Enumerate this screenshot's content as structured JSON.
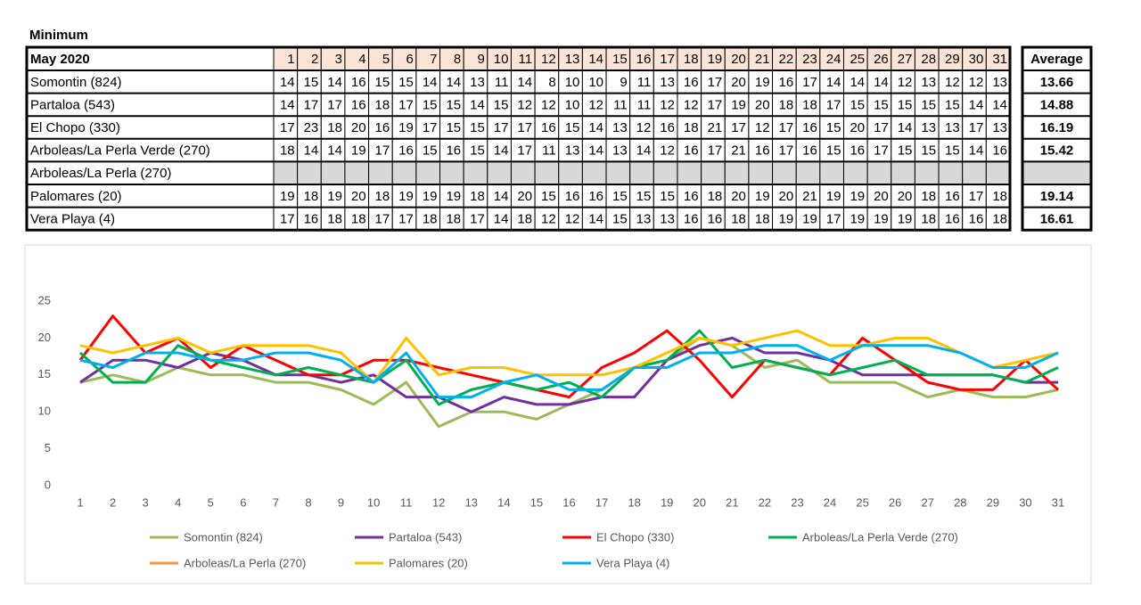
{
  "table": {
    "title": "Minimum",
    "corner": "May 2020",
    "average_header": "Average",
    "averages": [
      13.66,
      14.88,
      16.19,
      15.42,
      null,
      19.14,
      16.61
    ]
  },
  "chart_data": {
    "type": "line",
    "categories": [
      1,
      2,
      3,
      4,
      5,
      6,
      7,
      8,
      9,
      10,
      11,
      12,
      13,
      14,
      15,
      16,
      17,
      18,
      19,
      20,
      21,
      22,
      23,
      24,
      25,
      26,
      27,
      28,
      29,
      30,
      31
    ],
    "ylim": [
      0,
      25
    ],
    "yticks": [
      0,
      5,
      10,
      15,
      20,
      25
    ],
    "grid": false,
    "legend": "bottom",
    "series": [
      {
        "name": "Somontin (824)",
        "color": "#9bbb59",
        "values": [
          14,
          15,
          14,
          16,
          15,
          15,
          14,
          14,
          13,
          11,
          14,
          8,
          10,
          10,
          9,
          11,
          13,
          16,
          17,
          20,
          19,
          16,
          17,
          14,
          14,
          14,
          12,
          13,
          12,
          12,
          13
        ]
      },
      {
        "name": "Partaloa (543)",
        "color": "#7030a0",
        "values": [
          14,
          17,
          17,
          16,
          18,
          17,
          15,
          15,
          14,
          15,
          12,
          12,
          10,
          12,
          11,
          11,
          12,
          12,
          17,
          19,
          20,
          18,
          18,
          17,
          15,
          15,
          15,
          15,
          15,
          14,
          14
        ]
      },
      {
        "name": "El Chopo (330)",
        "color": "#ff0000",
        "values": [
          17,
          23,
          18,
          20,
          16,
          19,
          17,
          15,
          15,
          17,
          17,
          16,
          15,
          14,
          13,
          12,
          16,
          18,
          21,
          17,
          12,
          17,
          16,
          15,
          20,
          17,
          14,
          13,
          13,
          17,
          13
        ]
      },
      {
        "name": "Arboleas/La Perla Verde (270)",
        "color": "#00b050",
        "values": [
          18,
          14,
          14,
          19,
          17,
          16,
          15,
          16,
          15,
          14,
          17,
          11,
          13,
          14,
          13,
          14,
          12,
          16,
          17,
          21,
          16,
          17,
          16,
          15,
          16,
          17,
          15,
          15,
          15,
          14,
          16
        ]
      },
      {
        "name": "Arboleas/La Perla (270)",
        "color": "#f79646",
        "values": [
          null,
          null,
          null,
          null,
          null,
          null,
          null,
          null,
          null,
          null,
          null,
          null,
          null,
          null,
          null,
          null,
          null,
          null,
          null,
          null,
          null,
          null,
          null,
          null,
          null,
          null,
          null,
          null,
          null,
          null,
          null
        ]
      },
      {
        "name": "Palomares (20)",
        "color": "#ffc000",
        "values": [
          19,
          18,
          19,
          20,
          18,
          19,
          19,
          19,
          18,
          14,
          20,
          15,
          16,
          16,
          15,
          15,
          15,
          16,
          18,
          20,
          19,
          20,
          21,
          19,
          19,
          20,
          20,
          18,
          16,
          17,
          18
        ]
      },
      {
        "name": "Vera Playa (4)",
        "color": "#00b0f0",
        "values": [
          17,
          16,
          18,
          18,
          17,
          17,
          18,
          18,
          17,
          14,
          18,
          12,
          12,
          14,
          15,
          13,
          13,
          16,
          16,
          18,
          18,
          19,
          19,
          17,
          19,
          19,
          19,
          18,
          16,
          16,
          18
        ]
      }
    ]
  }
}
